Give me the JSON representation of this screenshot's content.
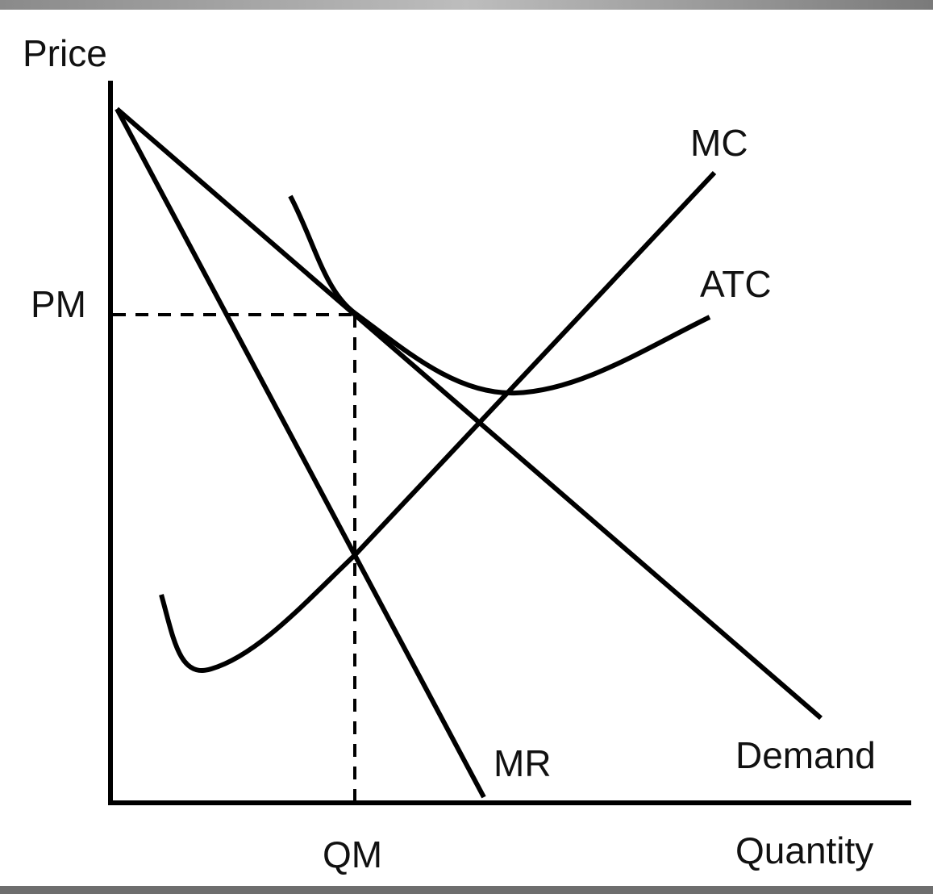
{
  "axes": {
    "y_label": "Price",
    "x_label": "Quantity"
  },
  "markers": {
    "price": "PM",
    "quantity": "QM"
  },
  "curves": [
    {
      "label": "MC"
    },
    {
      "label": "ATC"
    },
    {
      "label": "MR"
    },
    {
      "label": "Demand"
    }
  ]
}
